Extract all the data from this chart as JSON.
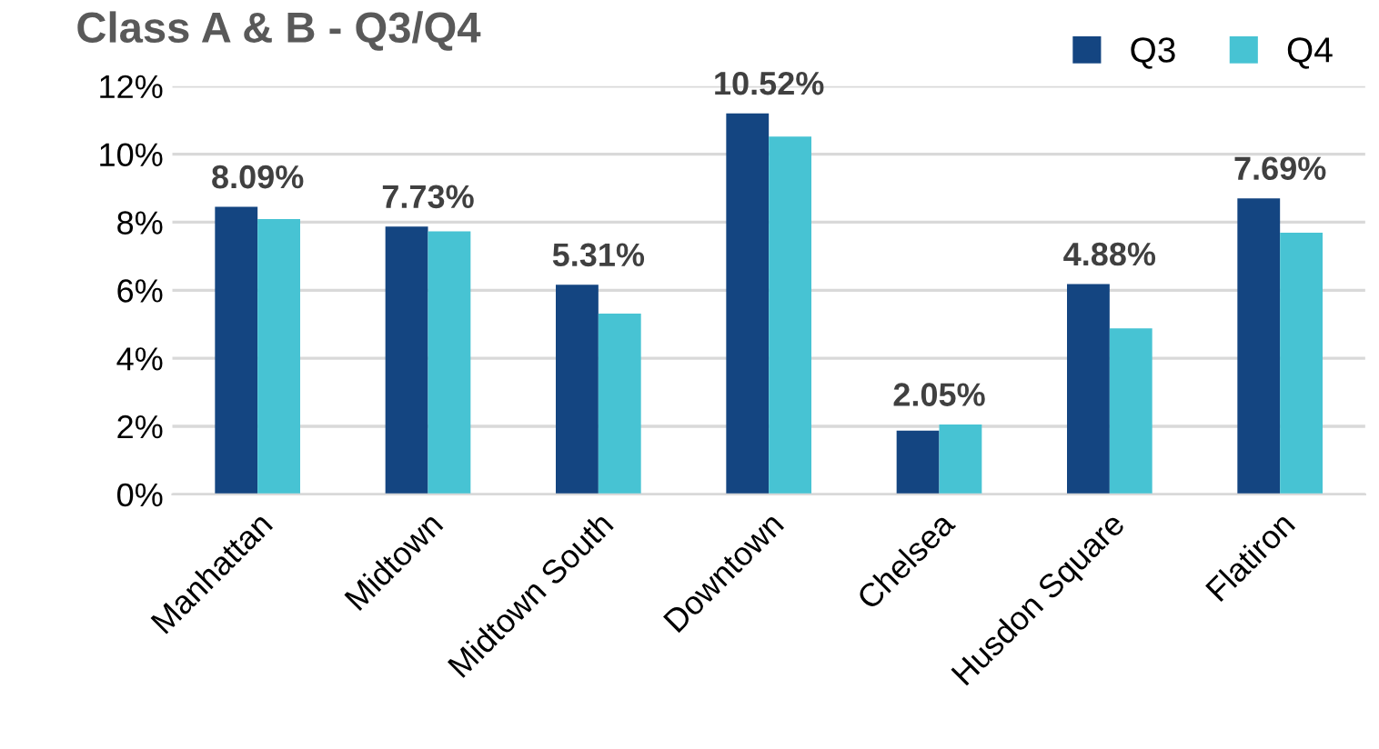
{
  "chart_data": {
    "type": "bar",
    "title": "Class A & B - Q3/Q4",
    "categories": [
      "Manhattan",
      "Midtown",
      "Midtown South",
      "Downtown",
      "Chelsea",
      "Husdon Square",
      "Flatiron"
    ],
    "series": [
      {
        "name": "Q3",
        "color": "#144581",
        "values": [
          8.45,
          7.87,
          6.16,
          11.2,
          1.87,
          6.18,
          8.7
        ]
      },
      {
        "name": "Q4",
        "color": "#47c3d3",
        "values": [
          8.09,
          7.73,
          5.31,
          10.52,
          2.05,
          4.88,
          7.69
        ],
        "value_labels": [
          "8.09%",
          "7.73%",
          "5.31%",
          "10.52%",
          "2.05%",
          "4.88%",
          "7.69%"
        ]
      }
    ],
    "ylim": [
      0,
      12
    ],
    "yticks": [
      {
        "value": 0,
        "label": "0%"
      },
      {
        "value": 2,
        "label": "2%"
      },
      {
        "value": 4,
        "label": "4%"
      },
      {
        "value": 6,
        "label": "6%"
      },
      {
        "value": 8,
        "label": "8%"
      },
      {
        "value": 10,
        "label": "10%"
      },
      {
        "value": 12,
        "label": "12%"
      }
    ],
    "grid": "y",
    "legend": "top right"
  }
}
